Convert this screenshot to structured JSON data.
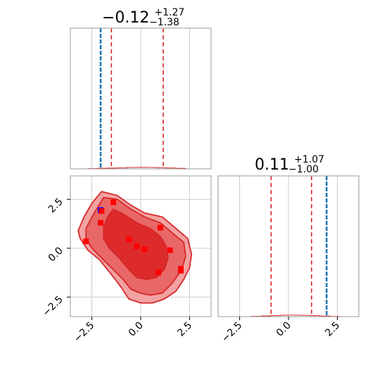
{
  "chart_data": [
    {
      "type": "histogram",
      "panel": "marginal-x",
      "title": {
        "median": "−0.12",
        "plus": "+1.27",
        "minus": "−1.38"
      },
      "xlim": [
        -3.6,
        3.6
      ],
      "grid": true,
      "quantile_lines": [
        -1.5,
        -0.12,
        1.15
      ],
      "truth_value": -2.05,
      "histogram": {
        "bin_edges": [
          -2.7,
          -2.2,
          -1.7,
          -1.2,
          -0.7,
          -0.2,
          0.3,
          0.8,
          1.3,
          1.8,
          2.3
        ],
        "counts": [
          0.3,
          0.6,
          0.8,
          1.0,
          1.4,
          1.6,
          1.4,
          1.2,
          0.9,
          0.5
        ]
      }
    },
    {
      "type": "histogram",
      "panel": "marginal-y",
      "title": {
        "median": "0.11",
        "plus": "+1.07",
        "minus": "−1.00"
      },
      "xlim": [
        -3.6,
        3.6
      ],
      "xticks": [
        "−2.5",
        "0.0",
        "2.5"
      ],
      "grid": true,
      "quantile_lines": [
        -0.89,
        0.11,
        1.18
      ],
      "truth_value": 1.95,
      "histogram": {
        "bin_edges": [
          -1.9,
          -1.4,
          -0.9,
          -0.4,
          0.1,
          0.6,
          1.1,
          1.6,
          2.1,
          2.6
        ],
        "counts": [
          0.4,
          0.7,
          1.1,
          1.5,
          1.5,
          1.3,
          1.0,
          0.6,
          0.3
        ]
      }
    },
    {
      "type": "contour",
      "panel": "joint",
      "xlim": [
        -3.6,
        3.6
      ],
      "ylim": [
        -3.5,
        3.7
      ],
      "xticks": [
        "−2.5",
        "0.0",
        "2.5"
      ],
      "yticks": [
        "−2.5",
        "0.0",
        "2.5"
      ],
      "grid": true,
      "contour_levels": [
        [
          [
            -2.0,
            2.9
          ],
          [
            -1.2,
            2.7
          ],
          [
            -0.5,
            2.2
          ],
          [
            0.2,
            1.8
          ],
          [
            1.1,
            1.6
          ],
          [
            1.7,
            1.1
          ],
          [
            2.4,
            0.5
          ],
          [
            2.6,
            -0.3
          ],
          [
            2.5,
            -1.0
          ],
          [
            2.2,
            -1.6
          ],
          [
            1.8,
            -2.2
          ],
          [
            1.2,
            -2.6
          ],
          [
            0.6,
            -2.8
          ],
          [
            0.0,
            -2.8
          ],
          [
            -0.6,
            -2.6
          ],
          [
            -1.0,
            -2.0
          ],
          [
            -1.3,
            -1.6
          ],
          [
            -2.1,
            -0.6
          ],
          [
            -2.7,
            -0.1
          ],
          [
            -3.1,
            0.5
          ],
          [
            -3.2,
            0.9
          ],
          [
            -2.9,
            1.6
          ],
          [
            -2.5,
            2.3
          ]
        ],
        [
          [
            -1.9,
            2.6
          ],
          [
            -1.2,
            2.5
          ],
          [
            -0.5,
            2.0
          ],
          [
            0.2,
            1.6
          ],
          [
            1.0,
            1.3
          ],
          [
            1.6,
            0.8
          ],
          [
            2.2,
            0.3
          ],
          [
            2.3,
            -0.4
          ],
          [
            2.1,
            -1.1
          ],
          [
            1.6,
            -1.8
          ],
          [
            1.1,
            -2.3
          ],
          [
            0.5,
            -2.4
          ],
          [
            0.0,
            -2.3
          ],
          [
            -0.5,
            -2.1
          ],
          [
            -0.9,
            -1.6
          ],
          [
            -1.3,
            -1.2
          ],
          [
            -2.0,
            -0.5
          ],
          [
            -2.5,
            0.0
          ],
          [
            -2.8,
            0.5
          ],
          [
            -2.8,
            1.0
          ],
          [
            -2.5,
            1.6
          ],
          [
            -2.2,
            2.1
          ]
        ],
        [
          [
            -1.4,
            2.0
          ],
          [
            -0.8,
            1.7
          ],
          [
            -0.2,
            1.3
          ],
          [
            0.5,
            1.0
          ],
          [
            1.0,
            0.6
          ],
          [
            1.3,
            0.1
          ],
          [
            1.4,
            -0.5
          ],
          [
            1.2,
            -1.1
          ],
          [
            0.8,
            -1.5
          ],
          [
            0.3,
            -1.6
          ],
          [
            -0.2,
            -1.5
          ],
          [
            -0.6,
            -1.1
          ],
          [
            -1.1,
            -0.5
          ],
          [
            -1.6,
            0.0
          ],
          [
            -1.9,
            0.5
          ],
          [
            -1.9,
            1.1
          ],
          [
            -1.7,
            1.6
          ]
        ]
      ],
      "samples": [
        {
          "x": -2.05,
          "y": 1.95,
          "color": "#0000ff"
        },
        {
          "x": -2.0,
          "y": 1.9,
          "color": "#ff0000"
        },
        {
          "x": -1.4,
          "y": 2.35,
          "color": "#ff0000"
        },
        {
          "x": -2.05,
          "y": 1.3,
          "color": "#ff0000"
        },
        {
          "x": -2.8,
          "y": 0.35,
          "color": "#ff0000"
        },
        {
          "x": -0.6,
          "y": 0.45,
          "color": "#ff0000"
        },
        {
          "x": -0.2,
          "y": 0.1,
          "color": "#ff0000"
        },
        {
          "x": 0.2,
          "y": -0.05,
          "color": "#ff0000"
        },
        {
          "x": 1.0,
          "y": 1.05,
          "color": "#ff0000"
        },
        {
          "x": 1.5,
          "y": -0.1,
          "color": "#ff0000"
        },
        {
          "x": 0.9,
          "y": -1.25,
          "color": "#ff0000"
        },
        {
          "x": 2.05,
          "y": -1.05,
          "color": "#ff0000"
        },
        {
          "x": 2.05,
          "y": -1.15,
          "color": "#ff0000"
        }
      ]
    }
  ],
  "colors": {
    "contour_outer": "#f2a2a2",
    "contour_mid": "#e86767",
    "contour_inner": "#dd2a2a",
    "contour_line": "#d62728",
    "quantile_line": "#d62728",
    "truth_line": "#1f77b4",
    "grid": "#cccccc",
    "spine": "#999999"
  }
}
